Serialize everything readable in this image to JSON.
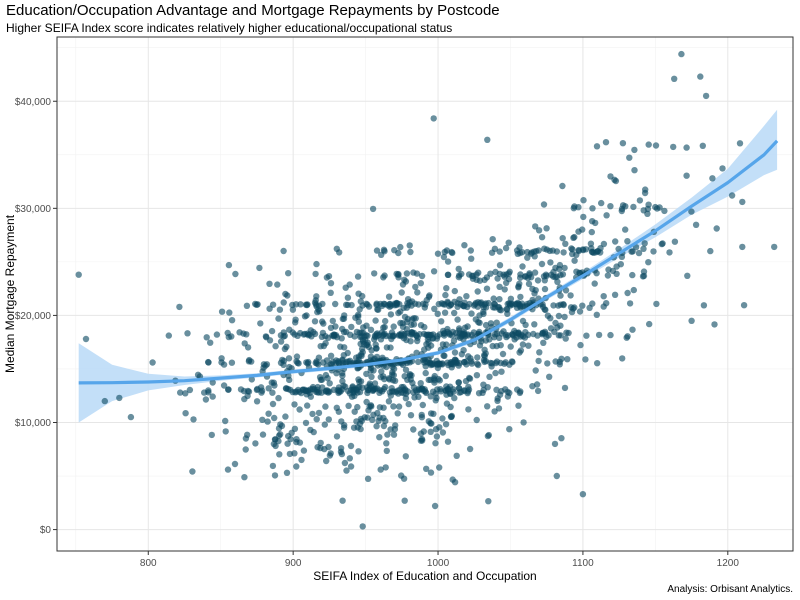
{
  "chart_data": {
    "type": "scatter",
    "title": "Education/Occupation Advantage and Mortgage Repayments by Postcode",
    "subtitle": "Higher SEIFA Index score indicates relatively higher educational/occupational status",
    "caption": "Analysis: Orbisant Analytics.",
    "xlabel": "SEIFA Index of Education and Occupation",
    "ylabel": "Median Mortgage Repayment",
    "xlim": [
      737,
      1245
    ],
    "ylim": [
      -2000,
      46000
    ],
    "x_ticks": [
      800,
      900,
      1000,
      1100,
      1200
    ],
    "x_tick_labels": [
      "800",
      "900",
      "1000",
      "1100",
      "1200"
    ],
    "y_ticks": [
      0,
      10000,
      20000,
      30000,
      40000
    ],
    "y_tick_labels": [
      "$0",
      "$10,000",
      "$20,000",
      "$30,000",
      "$40,000"
    ],
    "grid": true,
    "point_color": "#0d4a63",
    "smooth_color": "#56a5ea",
    "band_color": "#bcdcf7",
    "outliers": [
      {
        "x": 752,
        "y": 23800
      },
      {
        "x": 757,
        "y": 17800
      },
      {
        "x": 770,
        "y": 12000
      },
      {
        "x": 780,
        "y": 12300
      },
      {
        "x": 788,
        "y": 10500
      },
      {
        "x": 803,
        "y": 15600
      },
      {
        "x": 997,
        "y": 38400
      },
      {
        "x": 1034,
        "y": 36400
      },
      {
        "x": 948,
        "y": 300
      },
      {
        "x": 1168,
        "y": 44400
      },
      {
        "x": 1163,
        "y": 42100
      },
      {
        "x": 1181,
        "y": 42300
      },
      {
        "x": 1185,
        "y": 40500
      },
      {
        "x": 1232,
        "y": 26400
      },
      {
        "x": 1175,
        "y": 19500
      },
      {
        "x": 1203,
        "y": 31200
      },
      {
        "x": 1210,
        "y": 30600
      },
      {
        "x": 1210,
        "y": 26400
      },
      {
        "x": 1100,
        "y": 3300
      },
      {
        "x": 1082,
        "y": 5000
      },
      {
        "x": 998,
        "y": 2200
      },
      {
        "x": 977,
        "y": 2700
      },
      {
        "x": 855,
        "y": 5600
      }
    ],
    "trend": {
      "x": [
        752,
        775,
        800,
        825,
        850,
        875,
        900,
        925,
        950,
        975,
        1000,
        1025,
        1050,
        1075,
        1100,
        1125,
        1150,
        1175,
        1200,
        1225,
        1234
      ],
      "y": [
        13700,
        13720,
        13780,
        13900,
        14150,
        14400,
        14750,
        15050,
        15400,
        15850,
        16500,
        17700,
        19600,
        21700,
        23700,
        25800,
        27900,
        30200,
        32400,
        35000,
        36300
      ],
      "lower": [
        10000,
        12000,
        13000,
        13500,
        13900,
        14200,
        14550,
        14850,
        15200,
        15650,
        16300,
        17450,
        19350,
        21450,
        23400,
        25400,
        27300,
        29400,
        31100,
        33100,
        33600
      ],
      "upper": [
        17400,
        15400,
        14550,
        14300,
        14400,
        14600,
        14950,
        15250,
        15600,
        16050,
        16700,
        17950,
        19850,
        21950,
        24000,
        26200,
        28500,
        31000,
        33700,
        37700,
        39200
      ]
    }
  }
}
